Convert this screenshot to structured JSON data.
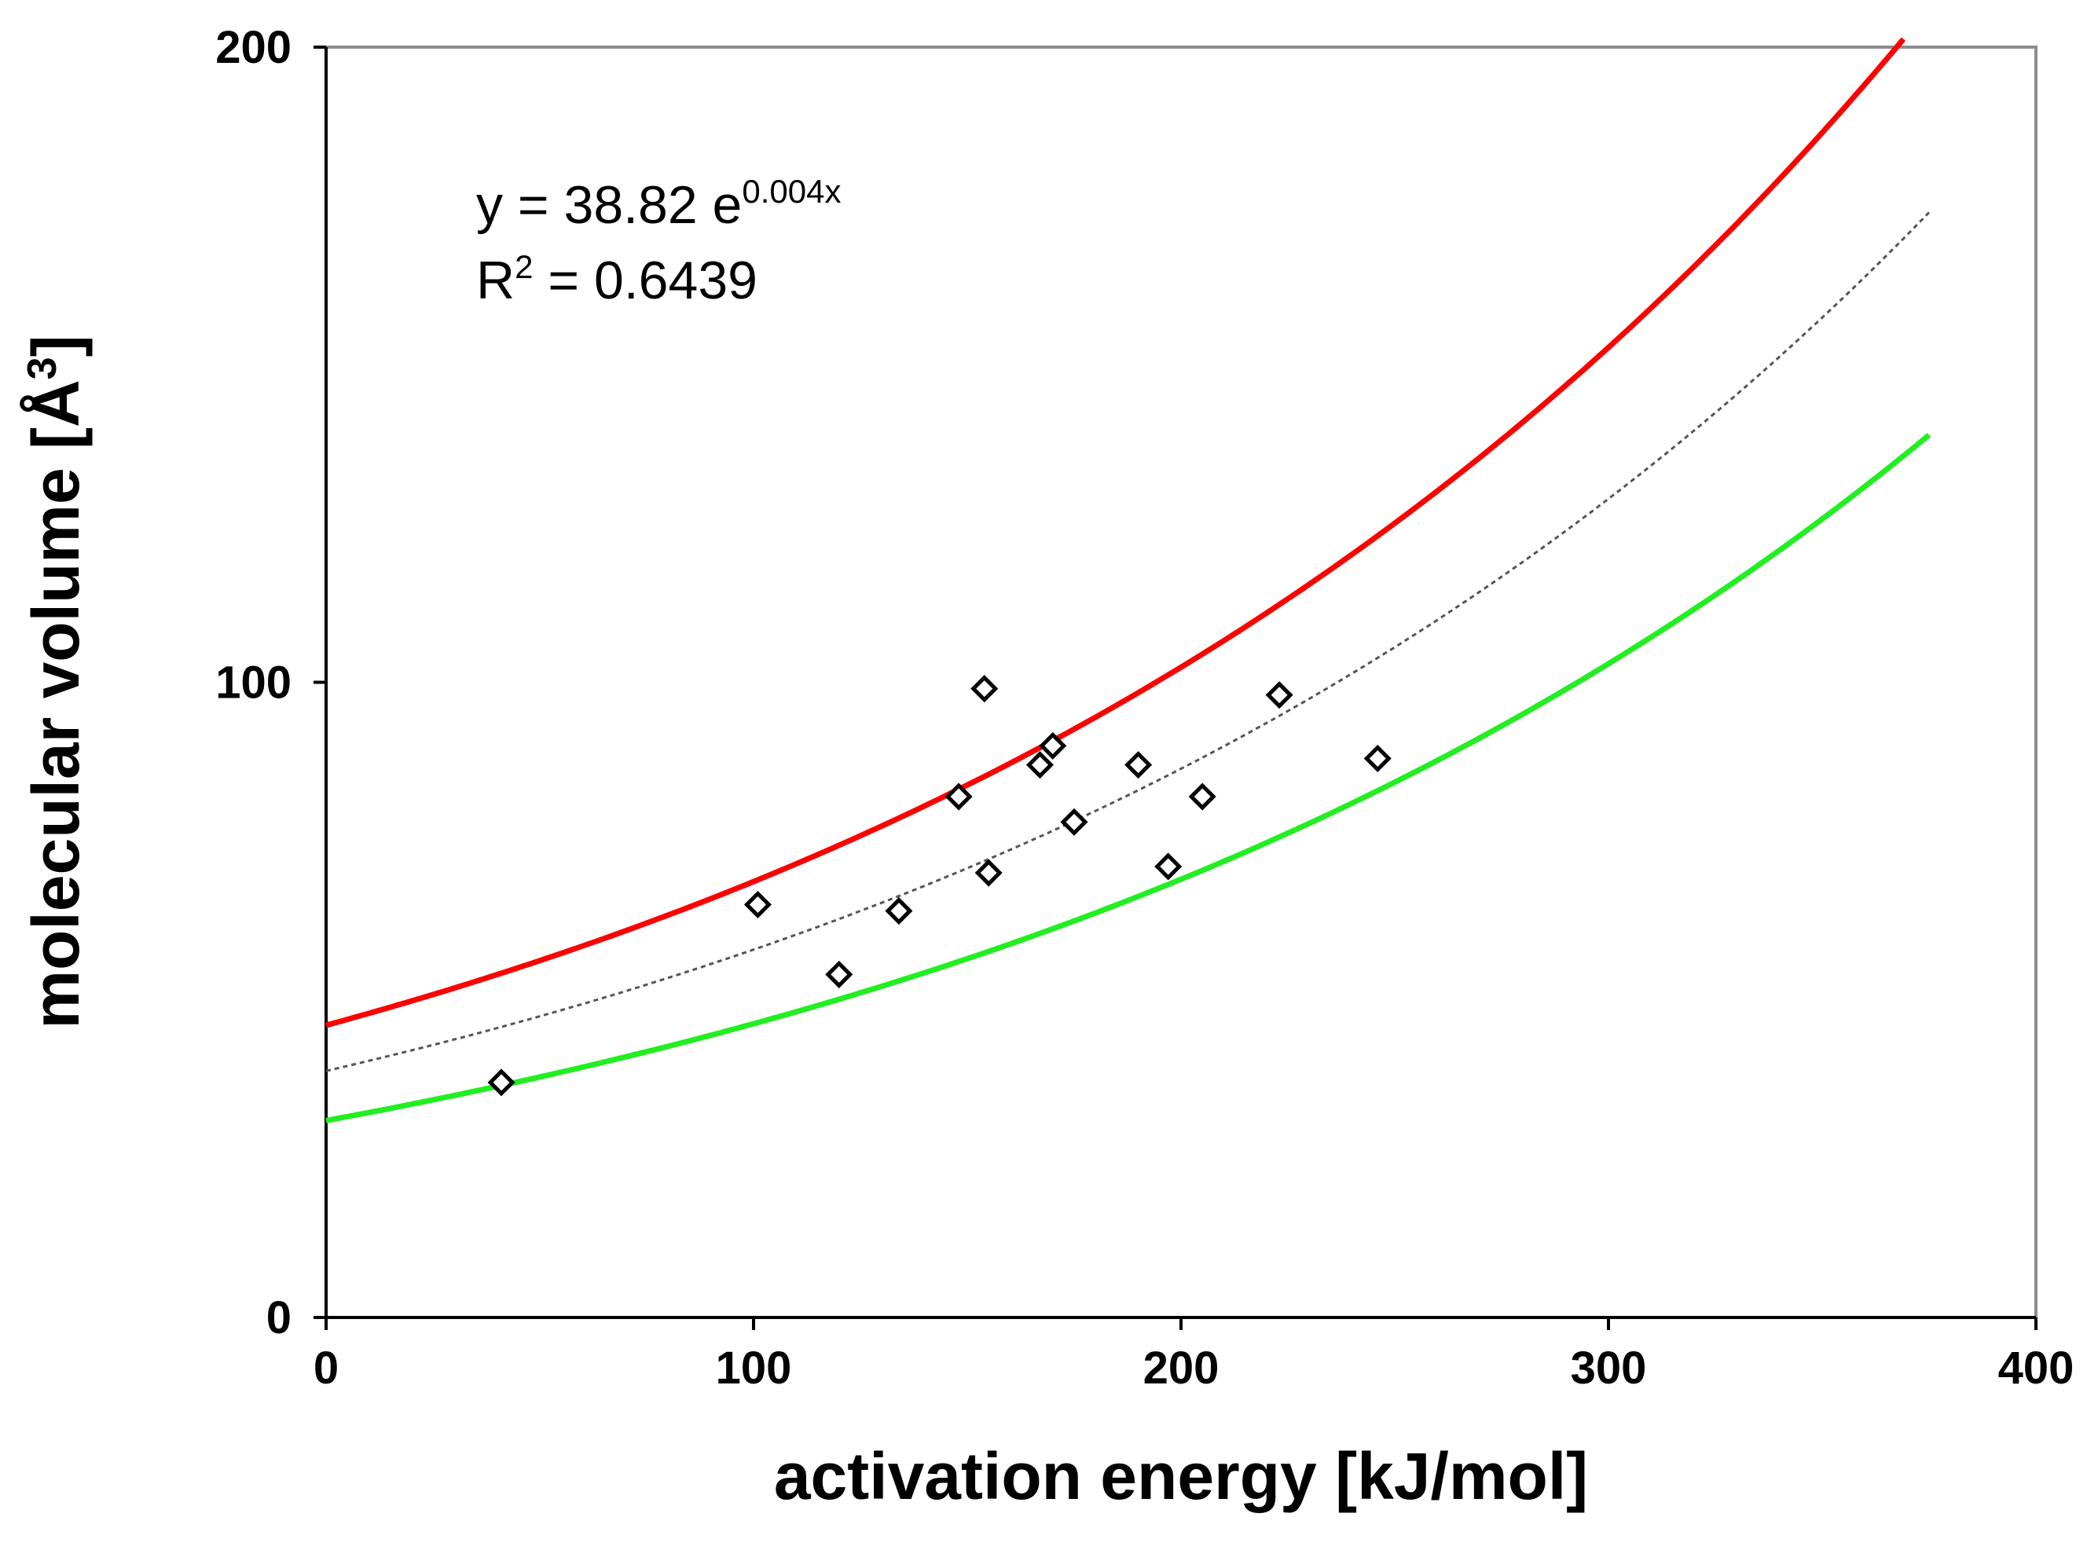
{
  "chart_data": {
    "type": "scatter",
    "title": "",
    "xlabel": "activation energy [kJ/mol]",
    "ylabel_main": "molecular volume [Å",
    "ylabel_sup": "3",
    "ylabel_close": "]",
    "xlim": [
      0,
      400
    ],
    "ylim": [
      0,
      200
    ],
    "x_ticks": [
      0,
      100,
      200,
      300,
      400
    ],
    "y_ticks": [
      0,
      100,
      200
    ],
    "x_tick_labels": [
      "0",
      "100",
      "200",
      "300",
      "400"
    ],
    "y_tick_labels": [
      "0",
      "100",
      "200"
    ],
    "grid": false,
    "annotation": {
      "equation_prefix": "y = 38.82 e",
      "equation_exponent": "0.004x",
      "r2_prefix": "R",
      "r2_sup": "2",
      "r2_suffix": " = 0.6439"
    },
    "points": {
      "name": "data",
      "marker": "diamond",
      "x": [
        41,
        101,
        120,
        134,
        148,
        154,
        155,
        167,
        170,
        175,
        190,
        197,
        205,
        223,
        246
      ],
      "y": [
        37,
        65,
        54,
        64,
        82,
        99,
        70,
        87,
        90,
        78,
        87,
        71,
        82,
        98,
        88
      ]
    },
    "curves": [
      {
        "name": "fit",
        "style": "dotted",
        "color": "#555555",
        "a": 38.82,
        "b": 0.004,
        "x_range": [
          0,
          375
        ]
      },
      {
        "name": "upper-bound",
        "style": "solid",
        "color": "#ff0000",
        "a": 46,
        "b": 0.004,
        "x_range": [
          0,
          369
        ]
      },
      {
        "name": "lower-bound",
        "style": "solid",
        "color": "#22ee22",
        "a": 31,
        "b": 0.004,
        "x_range": [
          0,
          375
        ]
      }
    ]
  }
}
